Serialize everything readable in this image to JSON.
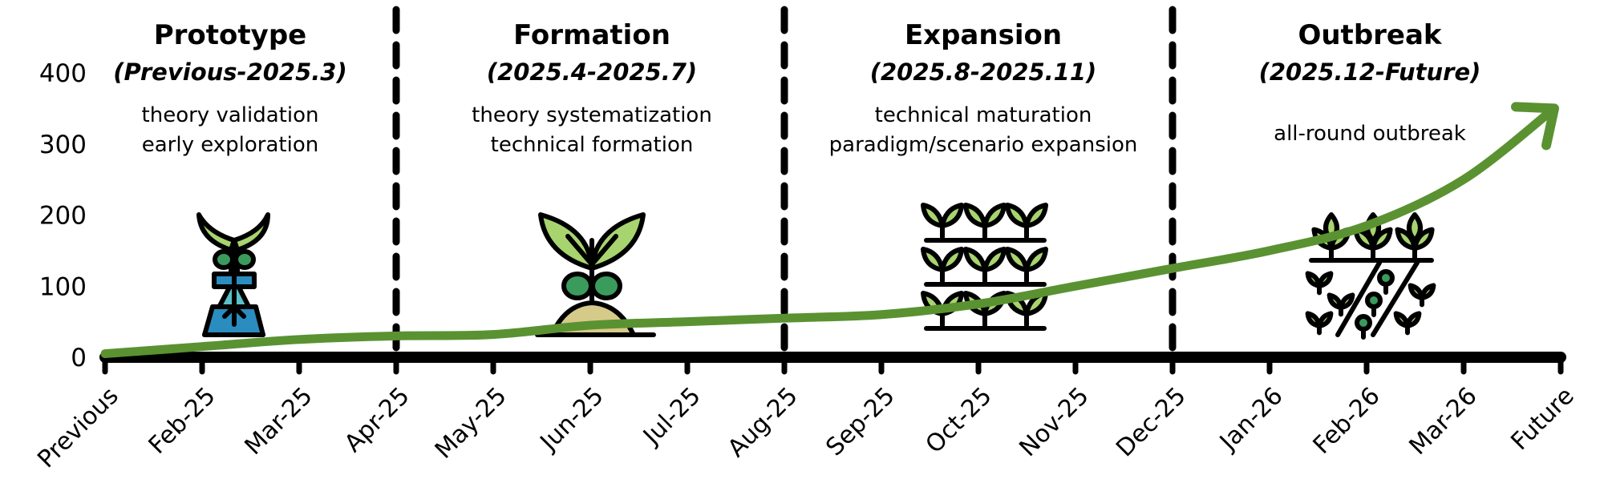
{
  "chart_data": {
    "type": "line",
    "categories": [
      "Previous",
      "Feb-25",
      "Mar-25",
      "Apr-25",
      "May-25",
      "Jun-25",
      "Jul-25",
      "Aug-25",
      "Sep-25",
      "Oct-25",
      "Nov-25",
      "Dec-25",
      "Jan-26",
      "Feb-26",
      "Mar-26",
      "Future"
    ],
    "values": [
      5,
      15,
      25,
      30,
      32,
      45,
      50,
      55,
      60,
      75,
      100,
      125,
      150,
      185,
      250,
      350
    ],
    "ylim": [
      0,
      400
    ],
    "yticks": [
      0,
      100,
      200,
      300,
      400
    ],
    "grid": false,
    "line_color": "#5a9232",
    "arrow_end": true,
    "phase_boundaries": [
      "Apr-25",
      "Aug-25",
      "Dec-25"
    ],
    "phases": [
      {
        "title": "Prototype",
        "period": "(Previous-2025.3)",
        "desc": [
          "theory validation",
          "early exploration"
        ],
        "icon": "seedling-flask-icon"
      },
      {
        "title": "Formation",
        "period": "(2025.4-2025.7)",
        "desc": [
          "theory systematization",
          "technical formation"
        ],
        "icon": "sprout-in-soil-icon"
      },
      {
        "title": "Expansion",
        "period": "(2025.8-2025.11)",
        "desc": [
          "technical maturation",
          "paradigm/scenario expansion"
        ],
        "icon": "sprout-rows-icon"
      },
      {
        "title": "Outbreak",
        "period": "(2025.12-Future)",
        "desc": [
          "all-round outbreak"
        ],
        "icon": "field-crops-icon"
      }
    ]
  },
  "colors": {
    "line": "#5a9232",
    "leaf_light": "#a8d46f",
    "leaf_dark": "#3a9b5c",
    "flask": "#2b8cbf",
    "flask_light": "#5bc0c8",
    "soil": "#d6ca8a"
  }
}
